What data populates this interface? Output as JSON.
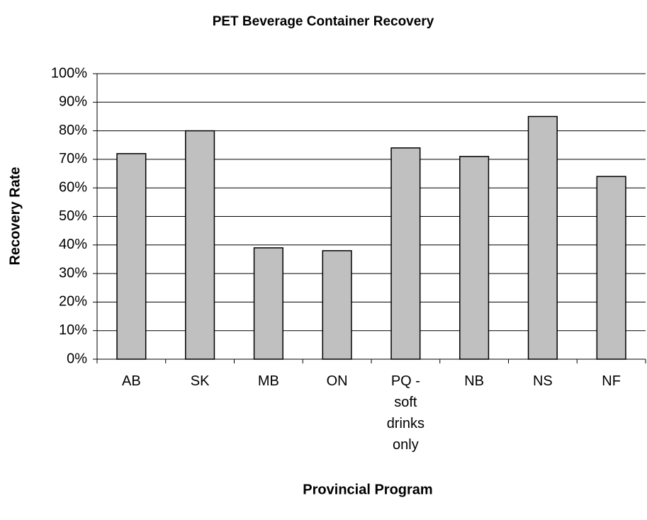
{
  "chart_data": {
    "type": "bar",
    "title": "PET Beverage Container Recovery",
    "x_label": "Provincial Program",
    "y_label": "Recovery Rate",
    "categories": [
      "AB",
      "SK",
      "MB",
      "ON",
      "PQ - soft drinks only",
      "NB",
      "NS",
      "NF"
    ],
    "values": [
      72,
      80,
      39,
      38,
      74,
      71,
      85,
      64
    ],
    "color": "#c0c0c0",
    "ylim": [
      0,
      100
    ],
    "yticks": [
      {
        "value": 0,
        "label": "0%"
      },
      {
        "value": 10,
        "label": "10%"
      },
      {
        "value": 20,
        "label": "20%"
      },
      {
        "value": 30,
        "label": "30%"
      },
      {
        "value": 40,
        "label": "40%"
      },
      {
        "value": 50,
        "label": "50%"
      },
      {
        "value": 60,
        "label": "60%"
      },
      {
        "value": 70,
        "label": "70%"
      },
      {
        "value": 80,
        "label": "80%"
      },
      {
        "value": 90,
        "label": "90%"
      },
      {
        "value": 100,
        "label": "100%"
      }
    ],
    "grid": true
  }
}
